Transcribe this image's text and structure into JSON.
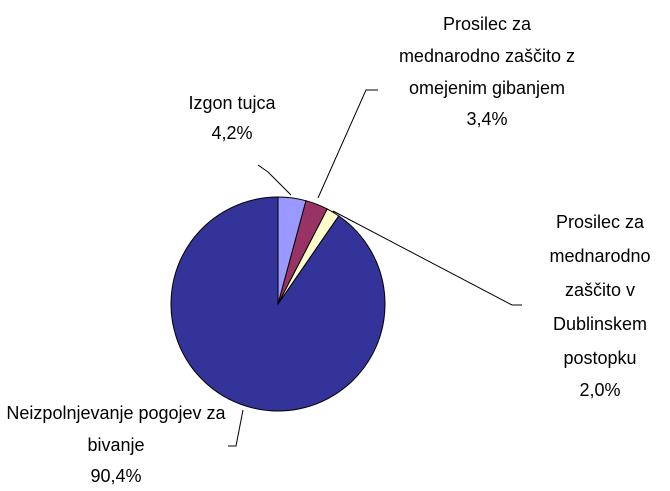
{
  "chart_data": {
    "type": "pie",
    "categories": [
      "Izgon tujca",
      "Prosilec za mednarodno zaščito z omejenim gibanjem",
      "Prosilec za mednarodno zaščito v Dublinskem postopku",
      "Neizpolnjevanje pogojev za bivanje"
    ],
    "values": [
      4.2,
      3.4,
      2.0,
      90.4
    ],
    "value_labels": [
      "4,2%",
      "3,4%",
      "2,0%",
      "90,4%"
    ],
    "colors": [
      "#9999ff",
      "#993366",
      "#ffffcc",
      "#333399"
    ]
  }
}
